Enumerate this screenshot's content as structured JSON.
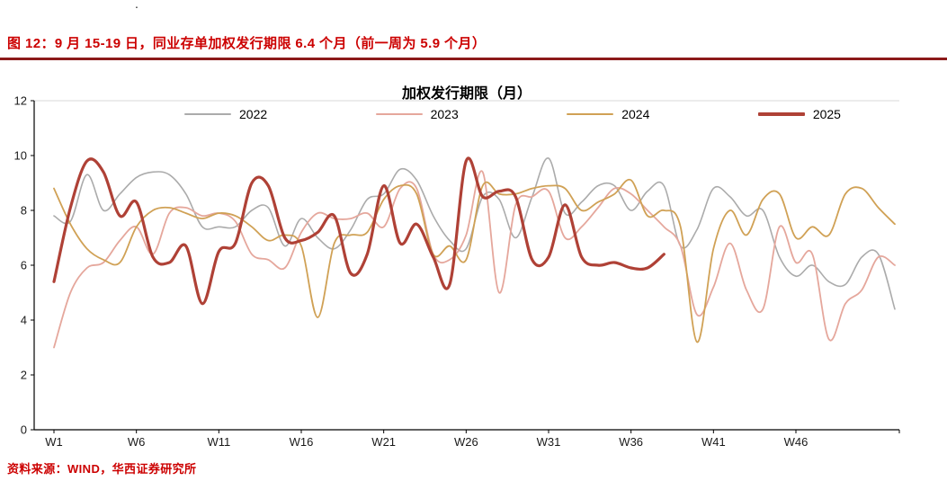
{
  "header": {
    "title": "图 12：9 月 15-19 日，同业存单加权发行期限 6.4 个月（前一周为 5.9 个月）"
  },
  "misc": {
    "stray_mark": "."
  },
  "footer": {
    "source": "资料来源：WIND，华西证券研究所"
  },
  "colors": {
    "caption_red": "#cc0000",
    "rule_red": "#8b1a1a",
    "axis_black": "#000000",
    "tick_text": "#1a1a1a",
    "gridline": "#d9d9d9"
  },
  "chart_data": {
    "type": "line",
    "title": "加权发行期限（月）",
    "xlabel": "",
    "ylabel": "",
    "ylim": [
      0,
      12
    ],
    "y_ticks": [
      0,
      2,
      4,
      6,
      8,
      10,
      12
    ],
    "n_weeks": 52,
    "x_tick_labels": [
      "W1",
      "W6",
      "W11",
      "W16",
      "W21",
      "W26",
      "W31",
      "W36",
      "W41",
      "W46"
    ],
    "x_tick_positions": [
      1,
      6,
      11,
      16,
      21,
      26,
      31,
      36,
      41,
      46
    ],
    "grid": "top-line-only",
    "legend_position": "top",
    "series": [
      {
        "name": "2022",
        "color": "#ababab",
        "width": 1.6,
        "values": [
          7.8,
          7.6,
          9.3,
          8.0,
          8.6,
          9.2,
          9.4,
          9.3,
          8.6,
          7.4,
          7.4,
          7.4,
          8.0,
          8.1,
          6.7,
          7.7,
          7.0,
          6.6,
          7.3,
          8.4,
          8.6,
          9.5,
          9.1,
          7.8,
          6.9,
          6.6,
          8.5,
          8.4,
          7.0,
          8.5,
          9.9,
          7.9,
          8.3,
          8.9,
          8.9,
          8.0,
          8.7,
          8.9,
          6.7,
          7.3,
          8.8,
          8.5,
          7.8,
          8.0,
          6.3,
          5.6,
          6.0,
          5.4,
          5.3,
          6.3,
          6.4,
          4.4
        ]
      },
      {
        "name": "2023",
        "color": "#e5a79c",
        "width": 1.8,
        "values": [
          3.0,
          5.0,
          5.9,
          6.1,
          6.9,
          7.4,
          6.4,
          7.9,
          8.1,
          7.8,
          7.9,
          7.6,
          6.4,
          6.2,
          5.9,
          7.2,
          7.9,
          7.7,
          7.7,
          7.9,
          7.4,
          8.8,
          8.8,
          6.4,
          6.2,
          7.1,
          9.4,
          5.0,
          8.2,
          8.5,
          8.7,
          7.0,
          7.4,
          8.1,
          8.8,
          8.6,
          8.0,
          7.4,
          6.7,
          4.2,
          5.2,
          6.8,
          5.1,
          4.4,
          7.4,
          6.1,
          6.4,
          3.3,
          4.6,
          5.1,
          6.3,
          6.0
        ]
      },
      {
        "name": "2024",
        "color": "#d0a155",
        "width": 1.8,
        "values": [
          8.8,
          7.5,
          6.6,
          6.2,
          6.1,
          7.4,
          8.0,
          8.1,
          7.9,
          7.7,
          7.9,
          7.8,
          7.4,
          6.9,
          7.1,
          6.7,
          4.1,
          6.8,
          7.1,
          7.2,
          8.4,
          8.9,
          8.6,
          6.4,
          6.7,
          6.2,
          8.9,
          8.6,
          8.6,
          8.8,
          8.9,
          8.8,
          8.0,
          8.3,
          8.6,
          9.1,
          7.8,
          8.0,
          7.4,
          3.2,
          6.6,
          8.0,
          7.1,
          8.4,
          8.6,
          7.0,
          7.4,
          7.1,
          8.6,
          8.8,
          8.1,
          7.5
        ]
      },
      {
        "name": "2025",
        "color": "#af4136",
        "width": 3.2,
        "values": [
          5.4,
          8.1,
          9.8,
          9.4,
          7.8,
          8.3,
          6.3,
          6.1,
          6.7,
          4.6,
          6.5,
          6.8,
          9.0,
          8.9,
          7.0,
          6.9,
          7.2,
          7.8,
          5.7,
          6.4,
          8.9,
          6.8,
          7.5,
          6.3,
          5.3,
          9.8,
          8.5,
          8.7,
          8.5,
          6.2,
          6.3,
          8.2,
          6.3,
          6.0,
          6.1,
          5.9,
          5.9,
          6.4
        ]
      }
    ]
  }
}
